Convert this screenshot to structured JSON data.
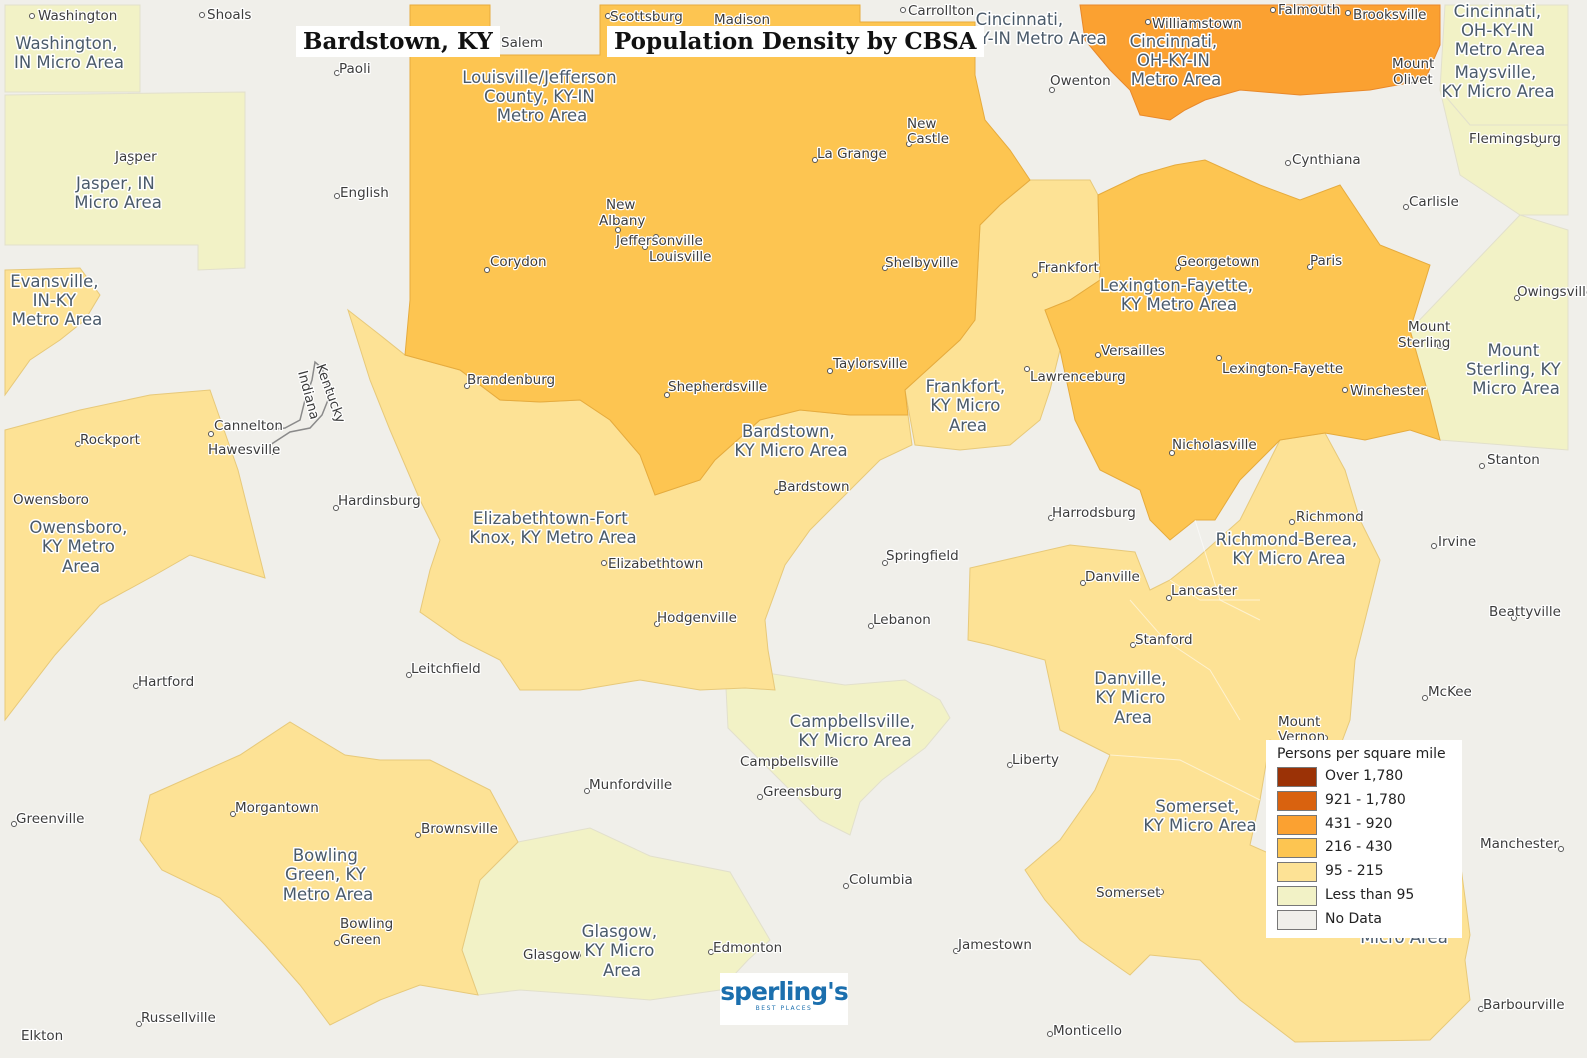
{
  "title_place": "Bardstown, KY",
  "title_main": "Population Density by CBSA",
  "legend": {
    "title": "Persons per square mile",
    "items": [
      {
        "label": "Over 1,780",
        "color": "#9b3206"
      },
      {
        "label": "921 - 1,780",
        "color": "#d9620f"
      },
      {
        "label": "431 - 920",
        "color": "#fba131"
      },
      {
        "label": "216 - 430",
        "color": "#fdc551"
      },
      {
        "label": "95 - 215",
        "color": "#fde295"
      },
      {
        "label": "Less than 95",
        "color": "#f2f2c6"
      },
      {
        "label": "No Data",
        "color": "#f0efea"
      }
    ]
  },
  "logo": {
    "name": "sperling's",
    "tagline": "BEST PLACES"
  },
  "regions": {
    "louisville": {
      "label": [
        "Louisville/Jefferson",
        "County, KY-IN",
        "Metro Area"
      ],
      "class": "216 - 430"
    },
    "cincinnati": {
      "label": [
        "Cincinnati,",
        "OH-KY-IN",
        "Metro Area"
      ],
      "class": "431 - 920"
    },
    "cincinnati_edge": {
      "label": [
        "Cincinnati,",
        "-KY-IN Metro Area"
      ]
    },
    "cincinnati_ne": {
      "label": [
        "Cincinnati,",
        "OH-KY-IN",
        "Metro Area"
      ]
    },
    "lexington": {
      "label": [
        "Lexington-Fayette,",
        "KY Metro Area"
      ],
      "class": "216 - 430"
    },
    "bardstown": {
      "label": [
        "Bardstown,",
        "KY Micro Area"
      ],
      "class": "95 - 215"
    },
    "frankfort": {
      "label": [
        "Frankfort,",
        "KY Micro",
        "Area"
      ],
      "class": "95 - 215"
    },
    "elizabethtown": {
      "label": [
        "Elizabethtown-Fort",
        "Knox, KY Metro Area"
      ],
      "class": "95 - 215"
    },
    "owensboro": {
      "label": [
        "Owensboro,",
        "KY Metro",
        "Area"
      ],
      "class": "95 - 215"
    },
    "evansville": {
      "label": [
        "Evansville,",
        "IN-KY",
        "Metro Area"
      ],
      "class": "95 - 215"
    },
    "jasper": {
      "label": [
        "Jasper, IN",
        "Micro Area"
      ],
      "class": "Less than 95"
    },
    "washington": {
      "label": [
        "Washington,",
        "IN Micro Area"
      ],
      "class": "Less than 95"
    },
    "richmond": {
      "label": [
        "Richmond-Berea,",
        "KY Micro Area"
      ],
      "class": "95 - 215"
    },
    "danville": {
      "label": [
        "Danville,",
        "KY Micro",
        "Area"
      ],
      "class": "95 - 215"
    },
    "somerset": {
      "label": [
        "Somerset,",
        "KY Micro Area"
      ],
      "class": "95 - 215"
    },
    "campbellsville": {
      "label": [
        "Campbellsville,",
        "KY Micro Area"
      ],
      "class": "Less than 95"
    },
    "glasgow": {
      "label": [
        "Glasgow,",
        "KY Micro",
        "Area"
      ],
      "class": "Less than 95"
    },
    "bowling_green": {
      "label": [
        "Bowling",
        "Green, KY",
        "Metro Area"
      ],
      "class": "95 - 215"
    },
    "maysville": {
      "label": [
        "Maysville,",
        "KY Micro Area"
      ],
      "class": "Less than 95"
    },
    "mount_sterling": {
      "label": [
        "Mount",
        "Sterling, KY",
        "Micro Area"
      ],
      "class": "Less than 95"
    },
    "london_partial": {
      "label": [
        "Micro Area"
      ]
    }
  },
  "cities": [
    "Washington",
    "Shoals",
    "Scottsburg",
    "Madison",
    "Carrollton",
    "Falmouth",
    "Brooksville",
    "Williamstown",
    "Salem",
    "Paoli",
    "Owenton",
    "Mount Olivet",
    "Flemingsburg",
    "New Castle",
    "La Grange",
    "Cynthiana",
    "Jasper",
    "English",
    "Carlisle",
    "New Albany",
    "Jeffersonville",
    "Louisville",
    "Corydon",
    "Shelbyville",
    "Frankfort",
    "Georgetown",
    "Paris",
    "Owingsville",
    "Mount Sterling",
    "Versailles",
    "Lexington-Fayette",
    "Lawrenceburg",
    "Winchester",
    "Taylorsville",
    "Brandenburg",
    "Shepherdsville",
    "Cannelton",
    "Hawesville",
    "Rockport",
    "Nicholasville",
    "Stanton",
    "Owensboro",
    "Hardinsburg",
    "Bardstown",
    "Harrodsburg",
    "Richmond",
    "Irvine",
    "Springfield",
    "Elizabethtown",
    "Danville",
    "Lancaster",
    "Beattyville",
    "Hodgenville",
    "Lebanon",
    "Stanford",
    "Leitchfield",
    "Hartford",
    "McKee",
    "Mount Vernon",
    "Campbellsville",
    "Liberty",
    "Munfordville",
    "Greensburg",
    "Morgantown",
    "Greenville",
    "Brownsville",
    "Manchester",
    "Columbia",
    "Somerset",
    "Bowling Green",
    "Jamestown",
    "Edmonton",
    "Glasgow",
    "Russellville",
    "Elkton",
    "Monticello",
    "Barbourville"
  ],
  "state_line_labels": [
    "Kentucky",
    "Indiana"
  ]
}
